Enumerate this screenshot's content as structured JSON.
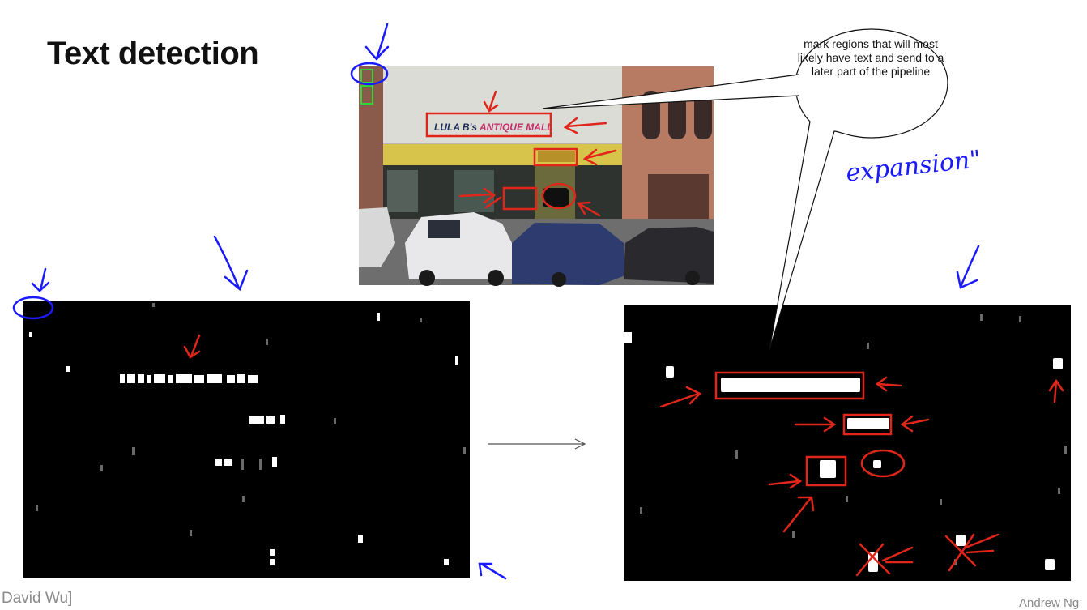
{
  "slide": {
    "title": "Text detection",
    "presenter_credit": "David Wu]",
    "author_credit": "Andrew Ng"
  },
  "callout": {
    "text": "mark regions that will most likely have text and send to a later part of the pipeline"
  },
  "annotation": {
    "expansion_label": "expansion\""
  },
  "photo": {
    "sign_part1": "LULA B's",
    "sign_part2": "ANTIQUE MALL"
  },
  "colors": {
    "ink_red": "#e0261b",
    "ink_blue": "#1a1aff",
    "mark_green": "#38d33a"
  }
}
